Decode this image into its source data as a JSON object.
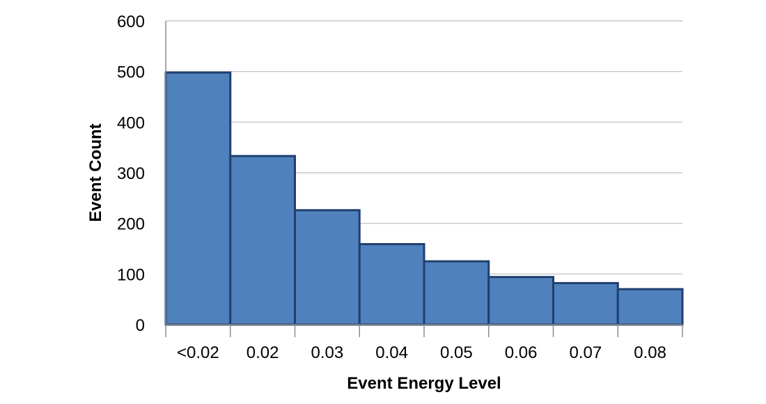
{
  "chart_data": {
    "type": "bar",
    "categories": [
      "<0.02",
      "0.02",
      "0.03",
      "0.04",
      "0.05",
      "0.06",
      "0.07",
      "0.08"
    ],
    "values": [
      498,
      333,
      226,
      159,
      125,
      94,
      82,
      70
    ],
    "xlabel": "Event Energy Level",
    "ylabel": "Event Count",
    "ylim": [
      0,
      600
    ],
    "yticks": [
      0,
      100,
      200,
      300,
      400,
      500,
      600
    ],
    "grid": true,
    "legend": "none",
    "colors": {
      "bar_fill": "#4f81bd",
      "bar_stroke": "#1f3f6e"
    }
  }
}
